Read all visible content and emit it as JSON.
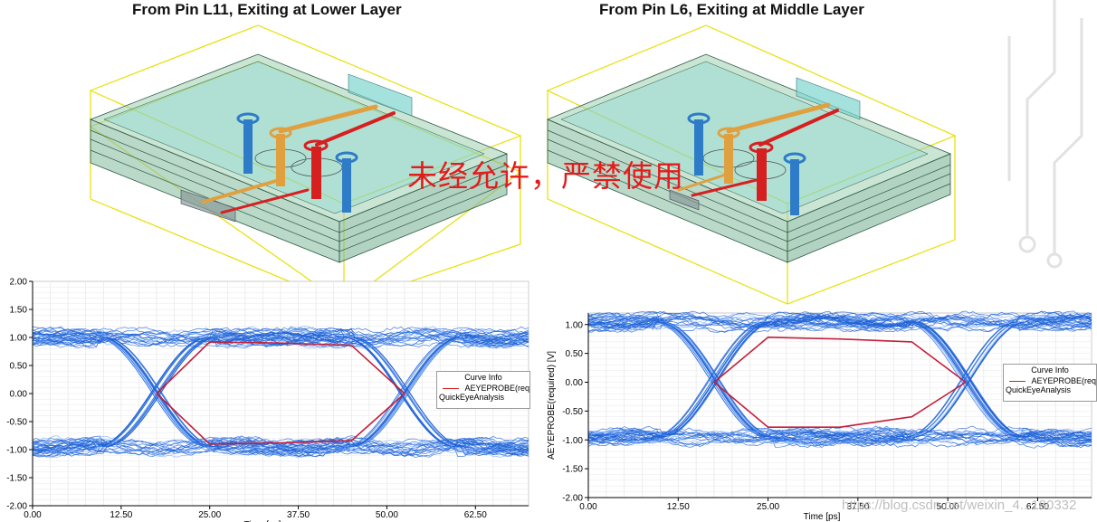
{
  "titles": {
    "left": "From Pin L11, Exiting at Lower Layer",
    "right": "From Pin L6, Exiting at Middle Layer"
  },
  "watermark": "未经允许，严禁使用",
  "url_watermark": "https://blog.csdn.net/weixin_4...180332",
  "colors": {
    "eye_traces": "#1f63d6",
    "eye_highlight": "#7fb0ff",
    "probe_curve": "#c41f3a",
    "pcb_green": "#9fcfb0",
    "pcb_cyan": "#7fd6d0",
    "via_blue": "#2e7bc8",
    "via_orange": "#e0a040",
    "via_red": "#d62020",
    "bbox_yellow": "#e6e000"
  },
  "chart_data": [
    {
      "type": "line",
      "subtype": "eye-diagram",
      "title": "",
      "xlabel": "Time [ps]",
      "ylabel": "",
      "xlim": [
        0,
        70
      ],
      "ylim": [
        -2.0,
        2.0
      ],
      "x_ticks": [
        "0.00",
        "12.50",
        "25.00",
        "37.50",
        "50.00",
        "62.50"
      ],
      "y_ticks": [
        "2.00",
        "1.50",
        "1.00",
        "0.50",
        "0.00",
        "-0.50",
        "-1.00",
        "-1.50",
        "-2.00"
      ],
      "grid": true,
      "crossing_points_ps": [
        17.5,
        52.5
      ],
      "levels": {
        "high": 1.0,
        "low": -0.95
      },
      "eye_high_top": 1.2,
      "eye_low_bottom": -1.25,
      "legend": {
        "title": "Curve Info",
        "entry": "AEYEPROBE(req",
        "entry2": "QuickEyeAnalysis",
        "placement": "right"
      },
      "series": [
        {
          "name": "AEYEPROBE(req",
          "role": "eye-mask",
          "upper": [
            [
              17.5,
              0.0
            ],
            [
              25,
              0.92
            ],
            [
              35,
              0.9
            ],
            [
              45,
              0.86
            ],
            [
              52.5,
              0.0
            ]
          ],
          "lower": [
            [
              17.5,
              0.0
            ],
            [
              25,
              -0.9
            ],
            [
              35,
              -0.88
            ],
            [
              45,
              -0.84
            ],
            [
              52.5,
              0.0
            ]
          ]
        }
      ]
    },
    {
      "type": "line",
      "subtype": "eye-diagram",
      "title": "",
      "xlabel": "Time [ps]",
      "ylabel": "AEYEPROBE(required) [V]",
      "xlim": [
        0,
        70
      ],
      "ylim": [
        -2.0,
        1.2
      ],
      "x_ticks": [
        "0.00",
        "12.50",
        "25.00",
        "37.50",
        "50.00",
        "62.50"
      ],
      "y_ticks": [
        "1.00",
        "0.50",
        "0.00",
        "-0.50",
        "-1.00",
        "-1.50",
        "-2.00"
      ],
      "grid": true,
      "crossing_points_ps": [
        17.5,
        52.5
      ],
      "levels": {
        "high": 1.05,
        "low": -0.95
      },
      "eye_high_top": 1.3,
      "eye_low_bottom": -1.45,
      "legend": {
        "title": "Curve Info",
        "entry": "AEYEPROBE(req",
        "entry2": "QuickEyeAnalysis",
        "placement": "right"
      },
      "series": [
        {
          "name": "AEYEPROBE(req",
          "role": "eye-mask",
          "upper": [
            [
              17.5,
              0.0
            ],
            [
              25,
              0.78
            ],
            [
              35,
              0.75
            ],
            [
              45,
              0.7
            ],
            [
              52.5,
              0.0
            ]
          ],
          "lower": [
            [
              17.5,
              0.0
            ],
            [
              25,
              -0.78
            ],
            [
              35,
              -0.78
            ],
            [
              45,
              -0.6
            ],
            [
              52.5,
              0.0
            ]
          ]
        }
      ]
    }
  ]
}
